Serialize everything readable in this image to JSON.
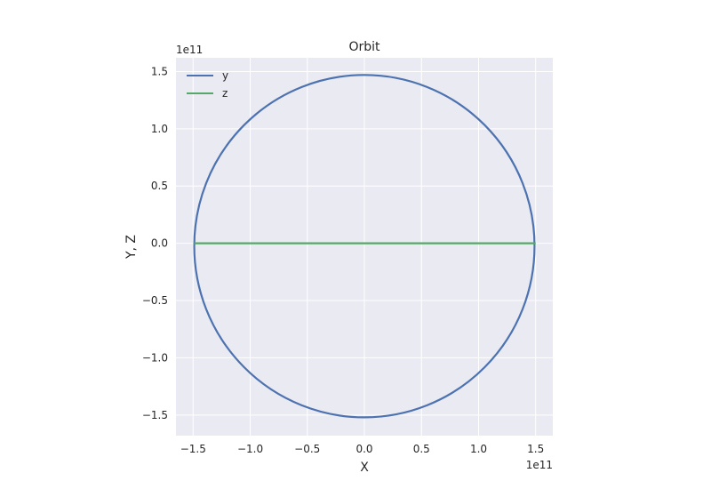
{
  "chart_data": {
    "type": "line",
    "title": "Orbit",
    "xlabel": "X",
    "ylabel": "Y, Z",
    "x_offset_text": "1e11",
    "y_offset_text": "1e11",
    "xlim": [
      -1.65,
      1.65
    ],
    "ylim": [
      -1.68,
      1.62
    ],
    "x_ticks": [
      -1.5,
      -1.0,
      -0.5,
      0.0,
      0.5,
      1.0,
      1.5
    ],
    "x_tick_labels": [
      "−1.5",
      "−1.0",
      "−0.5",
      "0.0",
      "0.5",
      "1.0",
      "1.5"
    ],
    "y_ticks": [
      -1.5,
      -1.0,
      -0.5,
      0.0,
      0.5,
      1.0,
      1.5
    ],
    "y_tick_labels": [
      "−1.5",
      "−1.0",
      "−0.5",
      "0.0",
      "0.5",
      "1.0",
      "1.5"
    ],
    "grid": true,
    "legend_position": "top-left",
    "series": [
      {
        "name": "y",
        "color": "#4c72b0",
        "shape": "ellipse",
        "center": [
          0.0,
          -0.025
        ],
        "x_semi_axis": 1.49,
        "y_semi_axis": 1.495,
        "x_range": [
          -1.49,
          1.49
        ],
        "y_range": [
          -1.52,
          1.47
        ]
      },
      {
        "name": "z",
        "color": "#55a868",
        "shape": "line",
        "x": [
          -1.49,
          1.5
        ],
        "y": [
          0.0,
          0.0
        ]
      }
    ]
  }
}
